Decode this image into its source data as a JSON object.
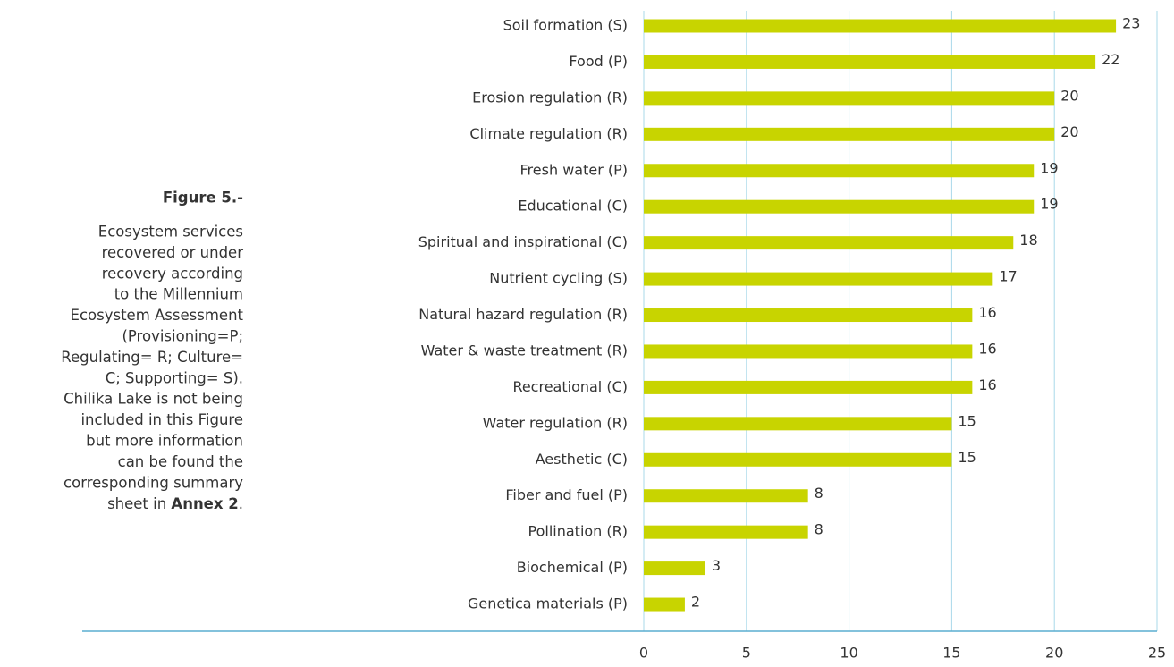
{
  "chart_data": {
    "type": "barh",
    "categories": [
      "Soil formation (S)",
      "Food (P)",
      "Erosion regulation (R)",
      "Climate regulation (R)",
      "Fresh water (P)",
      "Educational (C)",
      "Spiritual and inspirational (C)",
      "Nutrient cycling (S)",
      "Natural hazard regulation (R)",
      "Water & waste treatment (R)",
      "Recreational (C)",
      "Water regulation (R)",
      "Aesthetic (C)",
      "Fiber and fuel (P)",
      "Pollination (R)",
      "Biochemical (P)",
      "Genetica materials (P)"
    ],
    "values": [
      23,
      22,
      20,
      20,
      19,
      19,
      18,
      17,
      16,
      16,
      16,
      15,
      15,
      8,
      8,
      3,
      2
    ],
    "color": "#c8d400",
    "xlim": [
      0,
      25
    ],
    "xticks": [
      0,
      5,
      10,
      15,
      20,
      25
    ],
    "grid": true,
    "caption": {
      "label": "Figure 5.-",
      "lines": [
        "Ecosystem services",
        "recovered or under",
        "recovery according",
        "to the Millennium",
        "Ecosystem Assessment",
        "(Provisioning=P;",
        "Regulating= R; Culture=",
        "C; Supporting= S).",
        "Chilika Lake is not being",
        "included in this Figure",
        "but more information",
        "can be found the",
        "corresponding summary"
      ],
      "last_line": {
        "before": "sheet in ",
        "bold": "Annex 2",
        "after": "."
      }
    }
  }
}
